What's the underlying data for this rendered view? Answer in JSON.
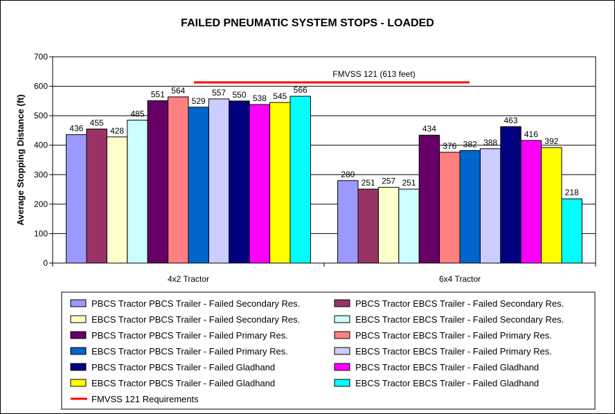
{
  "chart_data": {
    "type": "bar",
    "title": "FAILED PNEUMATIC SYSTEM STOPS - LOADED",
    "ylabel": "Average Stopping Distance (ft)",
    "xlabel": "",
    "ylim": [
      0,
      700
    ],
    "yticks": [
      0,
      100,
      200,
      300,
      400,
      500,
      600,
      700
    ],
    "grid": true,
    "legend_position": "bottom",
    "categories": [
      "4x2 Tractor",
      "6x4 Tractor"
    ],
    "series": [
      {
        "name": "PBCS Tractor PBCS Trailer - Failed Secondary Res.",
        "color": "#9999ff",
        "values": [
          436,
          280
        ]
      },
      {
        "name": "PBCS Tractor EBCS Trailer - Failed Secondary Res.",
        "color": "#993366",
        "values": [
          455,
          251
        ]
      },
      {
        "name": "EBCS Tractor PBCS Trailer - Failed Secondary Res.",
        "color": "#ffffcc",
        "values": [
          428,
          257
        ]
      },
      {
        "name": "EBCS Tractor EBCS Trailer - Failed Secondary Res.",
        "color": "#ccffff",
        "values": [
          485,
          251
        ]
      },
      {
        "name": "PBCS Tractor PBCS Trailer - Failed Primary Res.",
        "color": "#660066",
        "values": [
          551,
          434
        ]
      },
      {
        "name": "PBCS Tractor EBCS Trailer - Failed Primary Res.",
        "color": "#ff8080",
        "values": [
          564,
          376
        ]
      },
      {
        "name": "EBCS Tractor PBCS Trailer - Failed Primary Res.",
        "color": "#0066cc",
        "values": [
          529,
          382
        ]
      },
      {
        "name": "EBCS Tractor EBCS Trailer - Failed Primary Res.",
        "color": "#ccccff",
        "values": [
          557,
          388
        ]
      },
      {
        "name": "PBCS Tractor PBCS Trailer - Failed Gladhand",
        "color": "#000080",
        "values": [
          550,
          463
        ]
      },
      {
        "name": "PBCS Tractor EBCS Trailer - Failed Gladhand",
        "color": "#ff00ff",
        "values": [
          538,
          416
        ]
      },
      {
        "name": "EBCS Tractor PBCS Trailer - Failed Gladhand",
        "color": "#ffff00",
        "values": [
          545,
          392
        ]
      },
      {
        "name": "EBCS Tractor EBCS Trailer - Failed Gladhand",
        "color": "#00ffff",
        "values": [
          566,
          218
        ]
      }
    ],
    "reference_line": {
      "name": "FMVSS 121 Requirements",
      "label": "FMVSS 121 (613 feet)",
      "value": 613,
      "color": "#ff0000"
    }
  }
}
